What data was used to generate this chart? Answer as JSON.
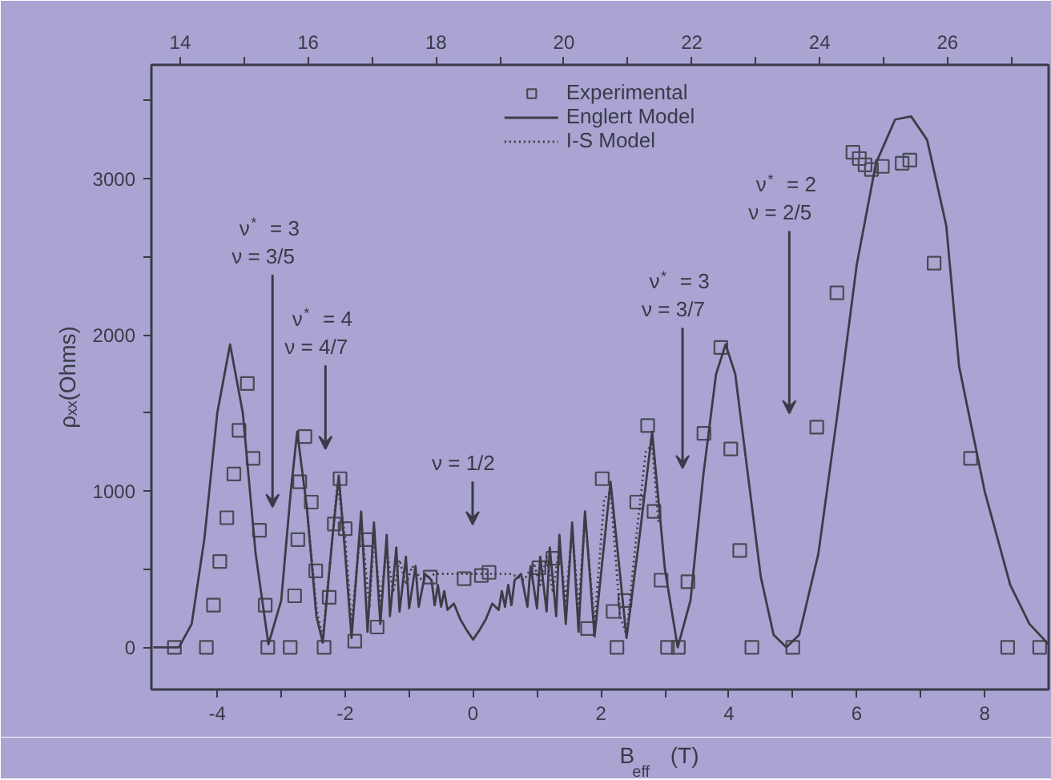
{
  "chart_data": {
    "type": "scatter",
    "xlabel": "B$_{eff}$ (T)",
    "ylabel": "ρₓₓ(Ohms)",
    "xlim": [
      -5.03,
      9.0
    ],
    "ylim": [
      -270,
      3730
    ],
    "xticks": [
      -4,
      {
        "value": -3,
        "label": null
      },
      -2,
      {
        "value": -1,
        "label": null
      },
      0,
      {
        "value": 1,
        "label": null
      },
      2,
      {
        "value": 3,
        "label": null
      },
      4,
      {
        "value": 5,
        "label": null
      },
      6,
      {
        "value": 7,
        "label": null
      },
      8
    ],
    "yticks": [
      0,
      {
        "value": 500,
        "label": null
      },
      1000,
      {
        "value": 1500,
        "label": null
      },
      2000,
      {
        "value": 2500,
        "label": null
      },
      3000,
      {
        "value": 3500,
        "label": null
      }
    ],
    "x2lim": [
      13.55,
      27.58
    ],
    "x2ticks": [
      14,
      {
        "value": 15,
        "label": null
      },
      16,
      {
        "value": 17,
        "label": null
      },
      18,
      {
        "value": 19,
        "label": null
      },
      20,
      {
        "value": 21,
        "label": null
      },
      22,
      {
        "value": 23,
        "label": null
      },
      24,
      {
        "value": 25,
        "label": null
      },
      26,
      {
        "value": 27,
        "label": null
      }
    ],
    "grid": false,
    "legend": "top",
    "series": [
      {
        "name": "Experimental",
        "marker": "square",
        "color": "#4a4a55",
        "x": [
          -4.67,
          -4.17,
          -4.06,
          -3.96,
          -3.85,
          -3.74,
          -3.66,
          -3.53,
          -3.44,
          -3.34,
          -3.25,
          -3.21,
          -2.86,
          -2.79,
          -2.74,
          -2.71,
          -2.63,
          -2.53,
          -2.46,
          -2.33,
          -2.25,
          -2.17,
          -2.08,
          -2.0,
          -1.85,
          -1.67,
          -1.5,
          -0.67,
          -0.14,
          0.13,
          0.25,
          1.03,
          1.25,
          1.79,
          2.02,
          2.19,
          2.25,
          2.375,
          2.56,
          2.73,
          2.83,
          2.94,
          3.04,
          3.21,
          3.36,
          3.61,
          3.875,
          4.03,
          4.17,
          4.36,
          5.0,
          5.375,
          5.69,
          5.94,
          6.04,
          6.13,
          6.23,
          6.4,
          6.71,
          6.83,
          7.21,
          7.78,
          8.36,
          8.86
        ],
        "values": [
          0,
          0,
          270,
          550,
          830,
          1110,
          1390,
          1690,
          1210,
          750,
          270,
          0,
          0,
          330,
          690,
          1060,
          1350,
          930,
          490,
          0,
          320,
          790,
          1080,
          760,
          40,
          690,
          130,
          450,
          440,
          460,
          480,
          510,
          570,
          120,
          1080,
          230,
          0,
          300,
          930,
          1420,
          870,
          430,
          0,
          0,
          420,
          1370,
          1920,
          1270,
          620,
          0,
          0,
          1410,
          2270,
          3170,
          3130,
          3090,
          3060,
          3080,
          3100,
          3120,
          2460,
          1210,
          0,
          0
        ]
      },
      {
        "name": "Englert Model",
        "type": "line",
        "line_style": "solid",
        "color": "#3c3c46",
        "x": [
          -5.0,
          -4.6,
          -4.4,
          -4.2,
          -4.0,
          -3.8,
          -3.6,
          -3.4,
          -3.2,
          -3.0,
          -2.85,
          -2.75,
          -2.6,
          -2.45,
          -2.35,
          -2.2,
          -2.1,
          -2.0,
          -1.9,
          -1.75,
          -1.65,
          -1.55,
          -1.45,
          -1.35,
          -1.3,
          -1.2,
          -1.15,
          -1.05,
          -1.0,
          -0.9,
          -0.85,
          -0.75,
          -0.65,
          -0.6,
          -0.55,
          -0.5,
          -0.45,
          -0.4,
          -0.3,
          -0.2,
          -0.1,
          0.0,
          0.1,
          0.2,
          0.3,
          0.4,
          0.45,
          0.5,
          0.55,
          0.6,
          0.65,
          0.75,
          0.85,
          0.9,
          1.0,
          1.05,
          1.15,
          1.2,
          1.3,
          1.35,
          1.45,
          1.55,
          1.65,
          1.75,
          1.9,
          2.15,
          2.4,
          2.6,
          2.8,
          3.0,
          3.2,
          3.4,
          3.6,
          3.8,
          3.95,
          4.1,
          4.3,
          4.5,
          4.7,
          4.9,
          5.1,
          5.4,
          5.7,
          6.0,
          6.3,
          6.6,
          6.85,
          7.1,
          7.4,
          7.6,
          8.0,
          8.4,
          8.7,
          9.0
        ],
        "values": [
          0,
          0,
          150,
          700,
          1500,
          1940,
          1500,
          600,
          20,
          300,
          1000,
          1380,
          900,
          200,
          30,
          700,
          1100,
          600,
          60,
          870,
          100,
          800,
          150,
          720,
          200,
          640,
          230,
          580,
          250,
          520,
          260,
          470,
          430,
          270,
          400,
          260,
          360,
          240,
          280,
          180,
          110,
          50,
          110,
          180,
          280,
          240,
          360,
          260,
          400,
          270,
          430,
          470,
          260,
          520,
          250,
          580,
          230,
          640,
          200,
          720,
          150,
          800,
          100,
          870,
          70,
          1060,
          60,
          700,
          1380,
          500,
          0,
          300,
          1100,
          1750,
          1940,
          1750,
          1100,
          450,
          80,
          0,
          80,
          600,
          1500,
          2450,
          3100,
          3380,
          3400,
          3250,
          2700,
          1800,
          1000,
          400,
          150,
          20
        ]
      },
      {
        "name": "I-S Model",
        "type": "line",
        "line_style": "dotted",
        "color": "#3c3c46",
        "x": [
          -2.6,
          -2.45,
          -2.35,
          -2.2,
          -2.12,
          -2.0,
          -1.9,
          -1.75,
          -1.62,
          -1.55,
          -1.45,
          -1.35,
          -1.25,
          -1.15,
          -1.05,
          -0.95,
          -0.8,
          -0.6,
          0.0,
          0.6,
          0.8,
          0.95,
          1.05,
          1.15,
          1.25,
          1.35,
          1.45,
          1.55,
          1.65,
          1.75,
          1.9,
          2.05,
          2.15,
          2.3,
          2.4,
          2.55,
          2.7,
          2.8,
          2.9
        ],
        "values": [
          900,
          250,
          60,
          700,
          1050,
          700,
          150,
          800,
          250,
          700,
          300,
          620,
          350,
          560,
          400,
          520,
          430,
          470,
          470,
          470,
          430,
          540,
          400,
          580,
          350,
          650,
          300,
          750,
          250,
          850,
          150,
          950,
          1000,
          200,
          80,
          700,
          1250,
          1300,
          800
        ]
      }
    ],
    "annotations": [
      "ν$^{*}$ = 3\nν = 3/5",
      "ν$^{*}$ = 4\nν = 4/7",
      "ν = 1/2",
      "ν$^{*}$ = 3\nν = 3/7",
      "ν$^{*}$ = 2\nν = 2/5"
    ]
  }
}
